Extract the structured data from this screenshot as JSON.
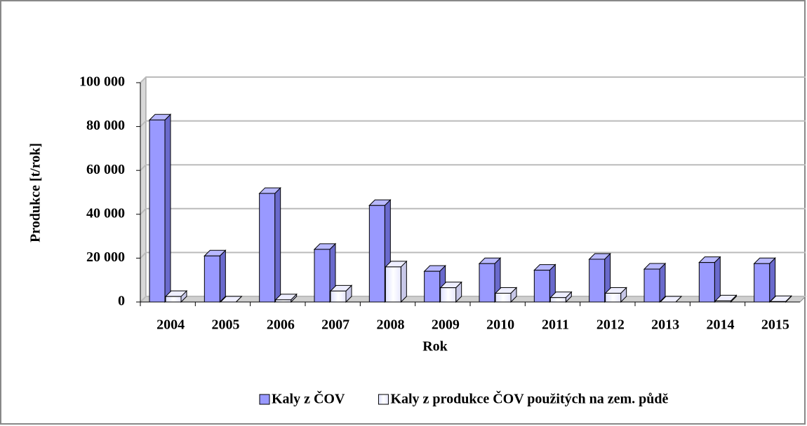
{
  "chart_data": {
    "type": "bar3d",
    "categories": [
      "2004",
      "2005",
      "2006",
      "2007",
      "2008",
      "2009",
      "2010",
      "2011",
      "2012",
      "2013",
      "2014",
      "2015"
    ],
    "series": [
      {
        "name": "Kaly z ČOV",
        "color": "#9999ff",
        "values": [
          83000,
          21000,
          49500,
          24000,
          44000,
          14000,
          17500,
          14500,
          19500,
          15000,
          18000,
          17500
        ]
      },
      {
        "name": "Kaly z produkce ČOV použitých na zem. půdě",
        "color": "#ffffff",
        "values": [
          2500,
          0,
          1000,
          5000,
          16000,
          6500,
          4000,
          2000,
          4000,
          0,
          500,
          200
        ]
      }
    ],
    "x_label": "Rok",
    "y_label": "Produkce [t/rok]",
    "ylim": [
      0,
      100000
    ],
    "yticks": [
      0,
      {
        "value": 20000,
        "label": "20 000"
      },
      {
        "value": 40000,
        "label": "40 000"
      },
      {
        "value": 60000,
        "label": "60 000"
      },
      {
        "value": 80000,
        "label": "80 000"
      },
      {
        "value": 100000,
        "label": "100 000"
      }
    ],
    "grid": true,
    "legend": "bottom"
  }
}
